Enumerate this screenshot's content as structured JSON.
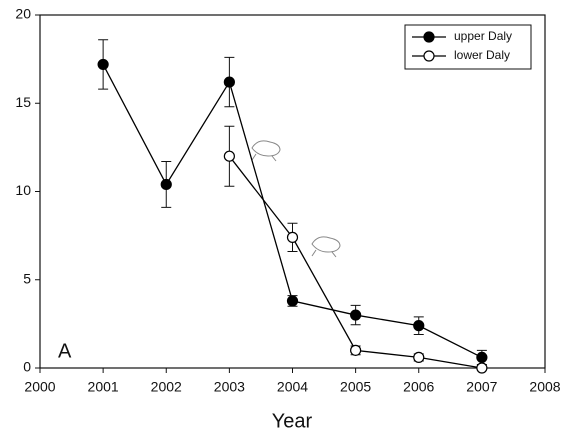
{
  "chart_data": {
    "type": "line",
    "xlabel": "Year",
    "panel_label": "A",
    "x": [
      2001,
      2002,
      2003,
      2004,
      2005,
      2006,
      2007
    ],
    "series": [
      {
        "name": "upper Daly",
        "color": "#000000",
        "fill": "#000000",
        "values": [
          17.2,
          10.4,
          16.2,
          3.8,
          3.0,
          2.4,
          0.6
        ],
        "errors": [
          1.4,
          1.3,
          1.4,
          0.3,
          0.55,
          0.5,
          0.4
        ]
      },
      {
        "name": "lower Daly",
        "color": "#000000",
        "fill": "#ffffff",
        "values": [
          null,
          null,
          12.0,
          7.4,
          1.0,
          0.6,
          0.0
        ],
        "errors": [
          null,
          null,
          1.7,
          0.8,
          0.25,
          0.2,
          0.1
        ]
      }
    ],
    "xlim": [
      2000,
      2008
    ],
    "xticks": [
      2000,
      2001,
      2002,
      2003,
      2004,
      2005,
      2006,
      2007,
      2008
    ],
    "ylim": [
      0,
      20
    ],
    "yticks": [
      0,
      5,
      10,
      15,
      20
    ],
    "legend": "upper-right",
    "grid": false
  }
}
